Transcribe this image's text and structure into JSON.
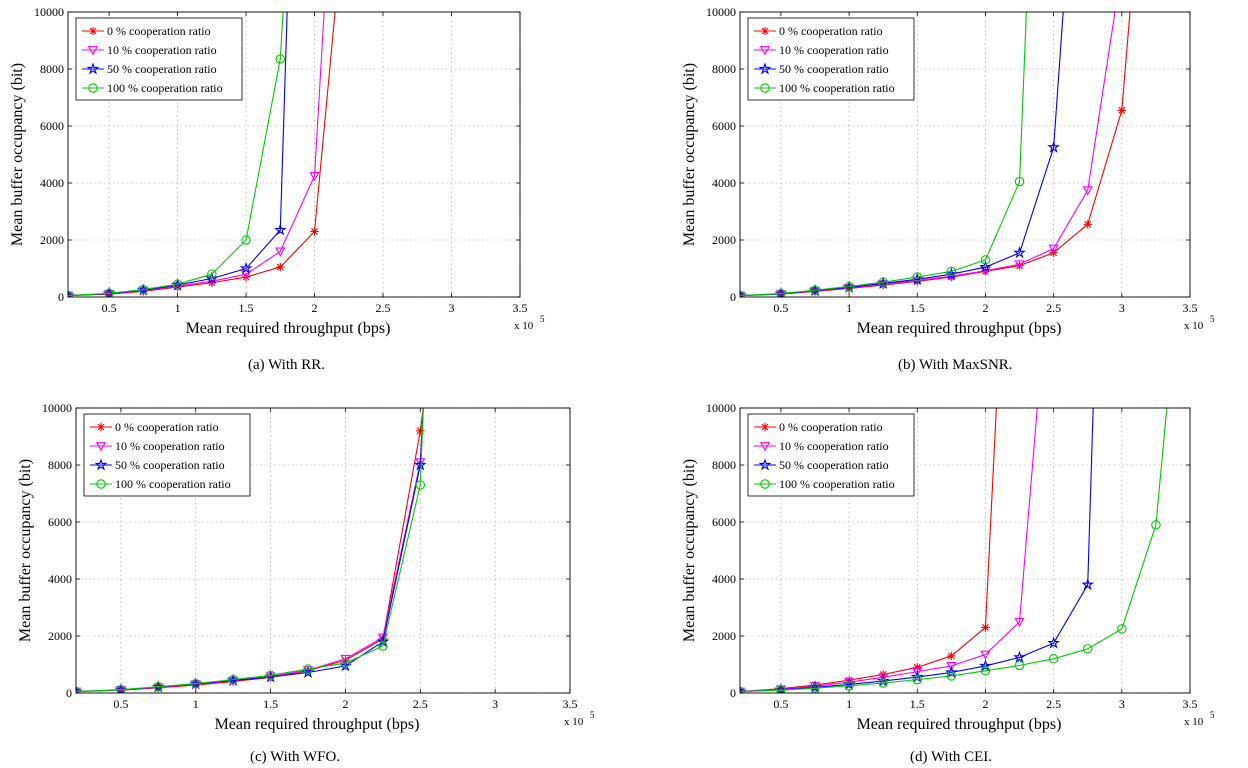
{
  "chart_data": [
    {
      "type": "line",
      "caption": "(a) With RR.",
      "xlabel": "Mean required throughput (bps)",
      "ylabel": "Mean buffer occupancy (bit)",
      "x_multiplier": "x 10",
      "x_multiplier_exp": "5",
      "xlim": [
        0.2,
        3.5
      ],
      "ylim": [
        0,
        10000
      ],
      "xticks": [
        0.5,
        1,
        1.5,
        2,
        2.5,
        3,
        3.5
      ],
      "yticks": [
        0,
        2000,
        4000,
        6000,
        8000,
        10000
      ],
      "xtick_labels": [
        "0.5",
        "1",
        "1.5",
        "2",
        "2.5",
        "3",
        "3.5"
      ],
      "ytick_labels": [
        "0",
        "2000",
        "4000",
        "6000",
        "8000",
        "10000"
      ],
      "grid": true,
      "legend_position": "top-left",
      "series": [
        {
          "name": "0 % cooperation ratio",
          "color": "#ff0000",
          "marker": "asterisk",
          "x": [
            0.2,
            0.5,
            0.75,
            1,
            1.25,
            1.5,
            1.75,
            2,
            2.15
          ],
          "y": [
            50,
            100,
            200,
            350,
            500,
            700,
            1050,
            2300,
            10000
          ]
        },
        {
          "name": "10 % cooperation ratio",
          "color": "#ff00ff",
          "marker": "triangle-down",
          "x": [
            0.2,
            0.5,
            0.75,
            1,
            1.25,
            1.5,
            1.75,
            2,
            2.07
          ],
          "y": [
            50,
            110,
            220,
            380,
            550,
            800,
            1600,
            4250,
            10000
          ]
        },
        {
          "name": "50 % cooperation ratio",
          "color": "#0000ff",
          "marker": "star",
          "x": [
            0.2,
            0.5,
            0.75,
            1,
            1.25,
            1.5,
            1.75,
            1.8
          ],
          "y": [
            50,
            120,
            240,
            420,
            650,
            1000,
            2350,
            10000
          ]
        },
        {
          "name": "100 % cooperation ratio",
          "color": "#00cc00",
          "marker": "circle",
          "x": [
            0.2,
            0.5,
            0.75,
            1,
            1.25,
            1.5,
            1.75,
            1.77
          ],
          "y": [
            50,
            130,
            260,
            450,
            800,
            2000,
            8350,
            10000
          ]
        }
      ]
    },
    {
      "type": "line",
      "caption": "(b) With MaxSNR.",
      "xlabel": "Mean required throughput (bps)",
      "ylabel": "Mean buffer occupancy (bit)",
      "x_multiplier": "x 10",
      "x_multiplier_exp": "5",
      "xlim": [
        0.2,
        3.5
      ],
      "ylim": [
        0,
        10000
      ],
      "xticks": [
        0.5,
        1,
        1.5,
        2,
        2.5,
        3,
        3.5
      ],
      "yticks": [
        0,
        2000,
        4000,
        6000,
        8000,
        10000
      ],
      "xtick_labels": [
        "0.5",
        "1",
        "1.5",
        "2",
        "2.5",
        "3",
        "3.5"
      ],
      "ytick_labels": [
        "0",
        "2000",
        "4000",
        "6000",
        "8000",
        "10000"
      ],
      "grid": true,
      "legend_position": "top-left",
      "series": [
        {
          "name": "0 % cooperation ratio",
          "color": "#ff0000",
          "marker": "asterisk",
          "x": [
            0.2,
            0.5,
            0.75,
            1,
            1.25,
            1.5,
            1.75,
            2,
            2.25,
            2.5,
            2.75,
            3,
            3.06
          ],
          "y": [
            50,
            100,
            200,
            300,
            420,
            550,
            700,
            900,
            1100,
            1550,
            2550,
            6550,
            10000
          ]
        },
        {
          "name": "10 % cooperation ratio",
          "color": "#ff00ff",
          "marker": "triangle-down",
          "x": [
            0.2,
            0.5,
            0.75,
            1,
            1.25,
            1.5,
            1.75,
            2,
            2.25,
            2.5,
            2.75,
            2.95
          ],
          "y": [
            50,
            105,
            210,
            320,
            450,
            580,
            730,
            920,
            1150,
            1700,
            3750,
            10000
          ]
        },
        {
          "name": "50 % cooperation ratio",
          "color": "#0000ff",
          "marker": "star",
          "x": [
            0.2,
            0.5,
            0.75,
            1,
            1.25,
            1.5,
            1.75,
            2,
            2.25,
            2.5,
            2.57
          ],
          "y": [
            50,
            110,
            220,
            340,
            480,
            620,
            800,
            1050,
            1550,
            5250,
            10000
          ]
        },
        {
          "name": "100 % cooperation ratio",
          "color": "#00cc00",
          "marker": "circle",
          "x": [
            0.2,
            0.5,
            0.75,
            1,
            1.25,
            1.5,
            1.75,
            2,
            2.25,
            2.3
          ],
          "y": [
            50,
            120,
            240,
            370,
            520,
            700,
            900,
            1300,
            4050,
            10000
          ]
        }
      ]
    },
    {
      "type": "line",
      "caption": "(c) With WFO.",
      "xlabel": "Mean required throughput (bps)",
      "ylabel": "Mean buffer occupancy (bit)",
      "x_multiplier": "x 10",
      "x_multiplier_exp": "5",
      "xlim": [
        0.2,
        3.5
      ],
      "ylim": [
        0,
        10000
      ],
      "xticks": [
        0.5,
        1,
        1.5,
        2,
        2.5,
        3,
        3.5
      ],
      "yticks": [
        0,
        2000,
        4000,
        6000,
        8000,
        10000
      ],
      "xtick_labels": [
        "0.5",
        "1",
        "1.5",
        "2",
        "2.5",
        "3",
        "3.5"
      ],
      "ytick_labels": [
        "0",
        "2000",
        "4000",
        "6000",
        "8000",
        "10000"
      ],
      "grid": true,
      "legend_position": "top-left",
      "series": [
        {
          "name": "0 % cooperation ratio",
          "color": "#ff0000",
          "marker": "asterisk",
          "x": [
            0.2,
            0.5,
            0.75,
            1,
            1.25,
            1.5,
            1.75,
            2,
            2.25,
            2.5,
            2.52
          ],
          "y": [
            50,
            100,
            180,
            280,
            400,
            550,
            780,
            1150,
            1900,
            9200,
            10000
          ]
        },
        {
          "name": "10 % cooperation ratio",
          "color": "#ff00ff",
          "marker": "triangle-down",
          "x": [
            0.2,
            0.5,
            0.75,
            1,
            1.25,
            1.5,
            1.75,
            2,
            2.25,
            2.5,
            2.52
          ],
          "y": [
            50,
            105,
            200,
            310,
            430,
            580,
            800,
            1200,
            1950,
            8100,
            10000
          ]
        },
        {
          "name": "50 % cooperation ratio",
          "color": "#0000ff",
          "marker": "star",
          "x": [
            0.2,
            0.5,
            0.75,
            1,
            1.25,
            1.5,
            1.75,
            2,
            2.25,
            2.5,
            2.52
          ],
          "y": [
            50,
            110,
            210,
            320,
            440,
            560,
            720,
            950,
            1800,
            8000,
            10000
          ]
        },
        {
          "name": "100 % cooperation ratio",
          "color": "#00cc00",
          "marker": "circle",
          "x": [
            0.2,
            0.5,
            0.75,
            1,
            1.25,
            1.5,
            1.75,
            2,
            2.25,
            2.5,
            2.52
          ],
          "y": [
            50,
            115,
            220,
            330,
            470,
            620,
            840,
            1050,
            1650,
            7300,
            10000
          ]
        }
      ]
    },
    {
      "type": "line",
      "caption": "(d) With CEI.",
      "xlabel": "Mean required throughput (bps)",
      "ylabel": "Mean buffer occupancy (bit)",
      "x_multiplier": "x 10",
      "x_multiplier_exp": "5",
      "xlim": [
        0.2,
        3.5
      ],
      "ylim": [
        0,
        10000
      ],
      "xticks": [
        0.5,
        1,
        1.5,
        2,
        2.5,
        3,
        3.5
      ],
      "yticks": [
        0,
        2000,
        4000,
        6000,
        8000,
        10000
      ],
      "xtick_labels": [
        "0.5",
        "1",
        "1.5",
        "2",
        "2.5",
        "3",
        "3.5"
      ],
      "ytick_labels": [
        "0",
        "2000",
        "4000",
        "6000",
        "8000",
        "10000"
      ],
      "grid": true,
      "legend_position": "top-left",
      "series": [
        {
          "name": "0 % cooperation ratio",
          "color": "#ff0000",
          "marker": "asterisk",
          "x": [
            0.2,
            0.5,
            0.75,
            1,
            1.25,
            1.5,
            1.75,
            2,
            2.08
          ],
          "y": [
            50,
            150,
            280,
            450,
            650,
            900,
            1300,
            2300,
            10000
          ]
        },
        {
          "name": "10 % cooperation ratio",
          "color": "#ff00ff",
          "marker": "triangle-down",
          "x": [
            0.2,
            0.5,
            0.75,
            1,
            1.25,
            1.5,
            1.75,
            2,
            2.25,
            2.38
          ],
          "y": [
            50,
            130,
            240,
            380,
            550,
            750,
            950,
            1350,
            2500,
            10000
          ]
        },
        {
          "name": "50 % cooperation ratio",
          "color": "#0000ff",
          "marker": "star",
          "x": [
            0.2,
            0.5,
            0.75,
            1,
            1.25,
            1.5,
            1.75,
            2,
            2.25,
            2.5,
            2.75,
            2.79
          ],
          "y": [
            50,
            110,
            200,
            300,
            420,
            560,
            720,
            950,
            1250,
            1750,
            3800,
            10000
          ]
        },
        {
          "name": "100 % cooperation ratio",
          "color": "#00cc00",
          "marker": "circle",
          "x": [
            0.2,
            0.5,
            0.75,
            1,
            1.25,
            1.5,
            1.75,
            2,
            2.25,
            2.5,
            2.75,
            3,
            3.25,
            3.33
          ],
          "y": [
            50,
            100,
            170,
            250,
            350,
            470,
            600,
            780,
            970,
            1200,
            1550,
            2250,
            5900,
            10000
          ]
        }
      ]
    }
  ]
}
